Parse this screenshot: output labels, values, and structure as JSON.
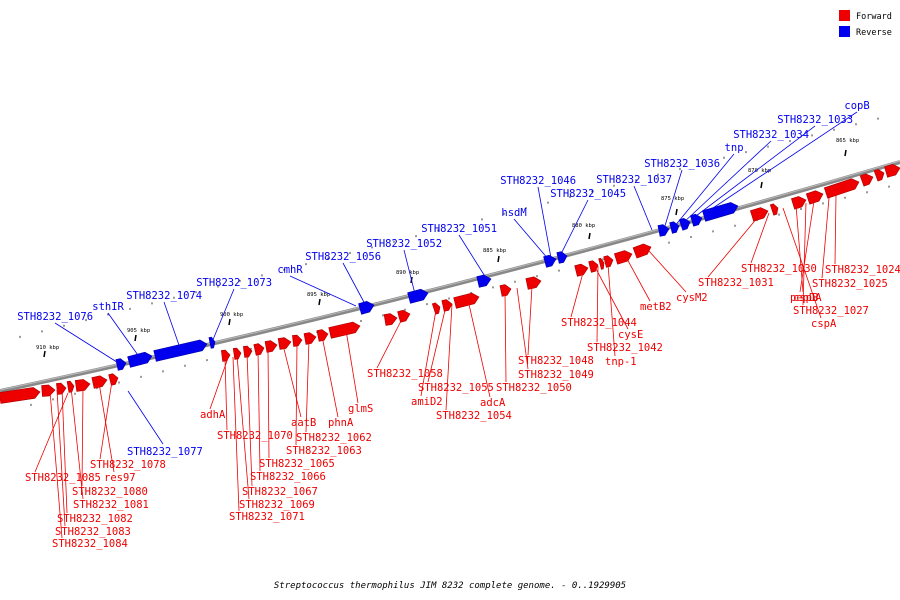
{
  "caption": "Streptococcus thermophilus JIM 8232 complete genome. - 0..1929905",
  "legend": [
    {
      "label": "Forward",
      "color": "#ee0000"
    },
    {
      "label": "Reverse",
      "color": "#0000ee"
    }
  ],
  "colors": {
    "forward": "#ee0000",
    "reverse": "#0000ee",
    "backbone": "#888888"
  },
  "kbp_ticks": [
    {
      "label": "865 kbp"
    },
    {
      "label": "870 kbp"
    },
    {
      "label": "875 kbp"
    },
    {
      "label": "880 kbp"
    },
    {
      "label": "885 kbp"
    },
    {
      "label": "890 kbp"
    },
    {
      "label": "895 kbp"
    },
    {
      "label": "900 kbp"
    },
    {
      "label": "905 kbp"
    },
    {
      "label": "910 kbp"
    }
  ],
  "reverse_labels": [
    "copB",
    "STH8232_1033",
    "STH8232_1034",
    "tnp",
    "STH8232_1036",
    "STH8232_1037",
    "STH8232_1045",
    "STH8232_1046",
    "hsdM",
    "STH8232_1051",
    "STH8232_1052",
    "STH8232_1056",
    "cmhR",
    "STH8232_1073",
    "STH8232_1074",
    "sthIR",
    "STH8232_1076",
    "STH8232_1077"
  ],
  "forward_labels": [
    "STH8232_1024",
    "STH8232_1025",
    "pepDA",
    "STH8232_1027",
    "cspB",
    "cspA",
    "STH8232_1030",
    "STH8232_1031",
    "cysM2",
    "metB2",
    "tnp-1",
    "STH8232_1042",
    "cysE",
    "STH8232_1044",
    "STH8232_1048",
    "STH8232_1049",
    "STH8232_1050",
    "adcA",
    "STH8232_1054",
    "STH8232_1055",
    "amiD2",
    "STH8232_1058",
    "glmS",
    "phnA",
    "STH8232_1062",
    "STH8232_1063",
    "aatB",
    "STH8232_1065",
    "STH8232_1066",
    "STH8232_1067",
    "STH8232_1069",
    "STH8232_1070",
    "STH8232_1071",
    "adhA",
    "STH8232_1078",
    "res97",
    "STH8232_1080",
    "STH8232_1081",
    "STH8232_1082",
    "STH8232_1083",
    "STH8232_1084",
    "STH8232_1085"
  ]
}
